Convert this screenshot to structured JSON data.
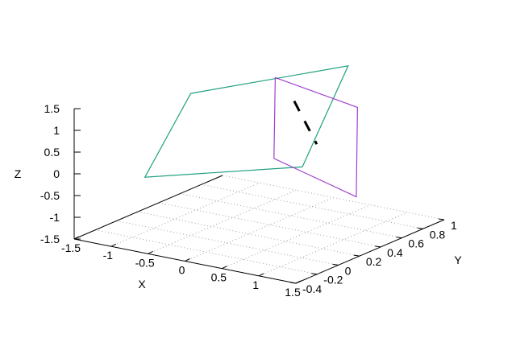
{
  "chart_data": {
    "type": "surface-3d",
    "title": "",
    "xlabel": "X",
    "ylabel": "Y",
    "zlabel": "Z",
    "xlim": [
      -1.5,
      1.5
    ],
    "ylim": [
      -0.4,
      1.0
    ],
    "zlim": [
      -1.5,
      1.5
    ],
    "x_ticks": [
      "-1.5",
      "-1",
      "-0.5",
      "0",
      "0.5",
      "1",
      "1.5"
    ],
    "y_ticks": [
      "-0.4",
      "-0.2",
      "0",
      "0.2",
      "0.4",
      "0.6",
      "0.8",
      "1"
    ],
    "z_ticks": [
      "-1.5",
      "-1",
      "-0.5",
      "0",
      "0.5",
      "1",
      "1.5"
    ],
    "grid": true,
    "legend": "none",
    "series": [
      {
        "kind": "plane-outline",
        "color": "#20a080",
        "points": [
          [
            -1.5,
            0.7,
            0.7
          ],
          [
            0.2,
            1.0,
            1.6
          ],
          [
            1.3,
            -0.2,
            0.9
          ],
          [
            -0.4,
            -0.5,
            0.4
          ]
        ]
      },
      {
        "kind": "plane-outline",
        "color": "#a040d0",
        "points": [
          [
            -0.5,
            0.8,
            1.3
          ],
          [
            0.9,
            0.6,
            1.3
          ],
          [
            1.6,
            0.1,
            0.0
          ],
          [
            0.2,
            0.3,
            0.2
          ]
        ]
      },
      {
        "kind": "dashed-line",
        "color": "#000000",
        "points": [
          [
            -0.1,
            0.7,
            1.0
          ],
          [
            0.85,
            0.25,
            0.8
          ]
        ]
      }
    ]
  }
}
